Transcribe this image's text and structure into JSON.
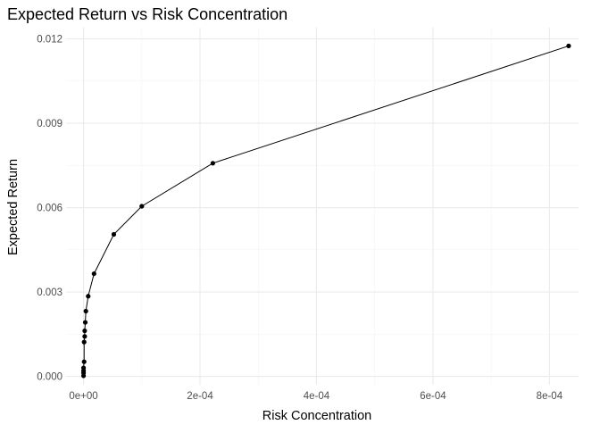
{
  "chart_data": {
    "type": "line",
    "title": "Expected Return vs Risk Concentration",
    "xlabel": "Risk Concentration",
    "ylabel": "Expected Return",
    "xlim": [
      -3e-05,
      0.00085
    ],
    "ylim": [
      -0.0003,
      0.0124
    ],
    "x_ticks": [
      0,
      0.0002,
      0.0004,
      0.0006,
      0.0008
    ],
    "x_tick_labels": [
      "0e+00",
      "2e-04",
      "4e-04",
      "6e-04",
      "8e-04"
    ],
    "y_ticks": [
      0,
      0.003,
      0.006,
      0.009,
      0.012
    ],
    "y_tick_labels": [
      "0.000",
      "0.003",
      "0.006",
      "0.009",
      "0.012"
    ],
    "grid": true,
    "legend": "none",
    "series": [
      {
        "x": [
          0,
          0,
          0,
          0,
          1e-06,
          1e-06,
          2e-06,
          2e-06,
          3e-06,
          4e-06,
          8e-06,
          1.8e-05,
          5.2e-05,
          0.0001,
          0.000222,
          0.000833
        ],
        "y": [
          2e-05,
          0.00012,
          0.0002,
          0.0003,
          0.00052,
          0.00122,
          0.00142,
          0.00162,
          0.00192,
          0.00232,
          0.00285,
          0.00365,
          0.00505,
          0.00605,
          0.00758,
          0.01175
        ]
      }
    ]
  }
}
